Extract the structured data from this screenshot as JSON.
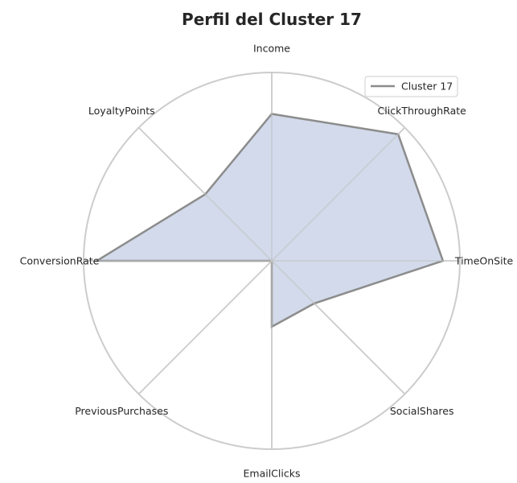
{
  "chart_data": {
    "type": "radar",
    "title": "Perfil del Cluster 17",
    "categories": [
      "Income",
      "ClickThroughRate",
      "TimeOnSite",
      "SocialShares",
      "EmailClicks",
      "PreviousPurchases",
      "ConversionRate",
      "LoyaltyPoints"
    ],
    "series": [
      {
        "name": "Cluster 17",
        "values": [
          0.78,
          0.95,
          0.91,
          0.32,
          0.35,
          0.0,
          0.93,
          0.5
        ]
      }
    ],
    "rlim": [
      0,
      1
    ],
    "grid": true,
    "legend_position": "top-right",
    "colors": {
      "line": "#8c8c8c",
      "fill": "#c3cde4",
      "grid": "#cccccc"
    }
  }
}
